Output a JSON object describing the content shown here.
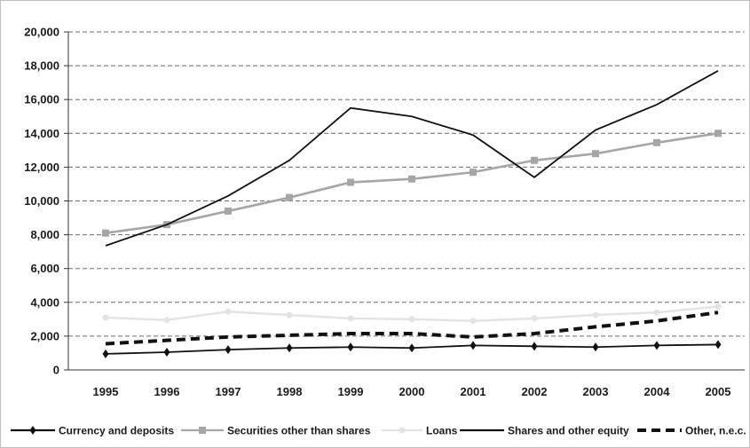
{
  "chart_data": {
    "type": "line",
    "title": "",
    "xlabel": "",
    "ylabel": "",
    "categories": [
      "1995",
      "1996",
      "1997",
      "1998",
      "1999",
      "2000",
      "2001",
      "2002",
      "2003",
      "2004",
      "2005"
    ],
    "ylim": [
      0,
      20000
    ],
    "yticks": [
      0,
      2000,
      4000,
      6000,
      8000,
      10000,
      12000,
      14000,
      16000,
      18000,
      20000
    ],
    "ytick_labels": [
      "0",
      "2,000",
      "4,000",
      "6,000",
      "8,000",
      "10,000",
      "12,000",
      "14,000",
      "16,000",
      "18,000",
      "20,000"
    ],
    "grid": "horizontal dashed",
    "legend_position": "bottom",
    "series": [
      {
        "name": "Currency and deposits",
        "color": "#111111",
        "style": "solid",
        "marker": "diamond",
        "values": [
          950,
          1050,
          1200,
          1300,
          1350,
          1300,
          1450,
          1400,
          1350,
          1450,
          1500
        ]
      },
      {
        "name": "Securities other than shares",
        "color": "#a6a6a6",
        "style": "solid",
        "marker": "square",
        "values": [
          8100,
          8600,
          9400,
          10200,
          11100,
          11300,
          11700,
          12400,
          12800,
          13450,
          14000
        ]
      },
      {
        "name": "Loans",
        "color": "#e3e3e3",
        "style": "solid",
        "marker": "circle",
        "values": [
          3100,
          2950,
          3450,
          3250,
          3050,
          3000,
          2900,
          3050,
          3250,
          3400,
          3750
        ]
      },
      {
        "name": "Shares and other equity",
        "color": "#111111",
        "style": "solid",
        "marker": "none",
        "values": [
          7350,
          8600,
          10300,
          12400,
          15500,
          15000,
          13900,
          11400,
          14200,
          15700,
          17700
        ]
      },
      {
        "name": "Other, n.e.c.",
        "color": "#111111",
        "style": "dashed",
        "marker": "none",
        "values": [
          1550,
          1750,
          1950,
          2050,
          2150,
          2150,
          1950,
          2150,
          2550,
          2900,
          3400
        ]
      }
    ]
  }
}
